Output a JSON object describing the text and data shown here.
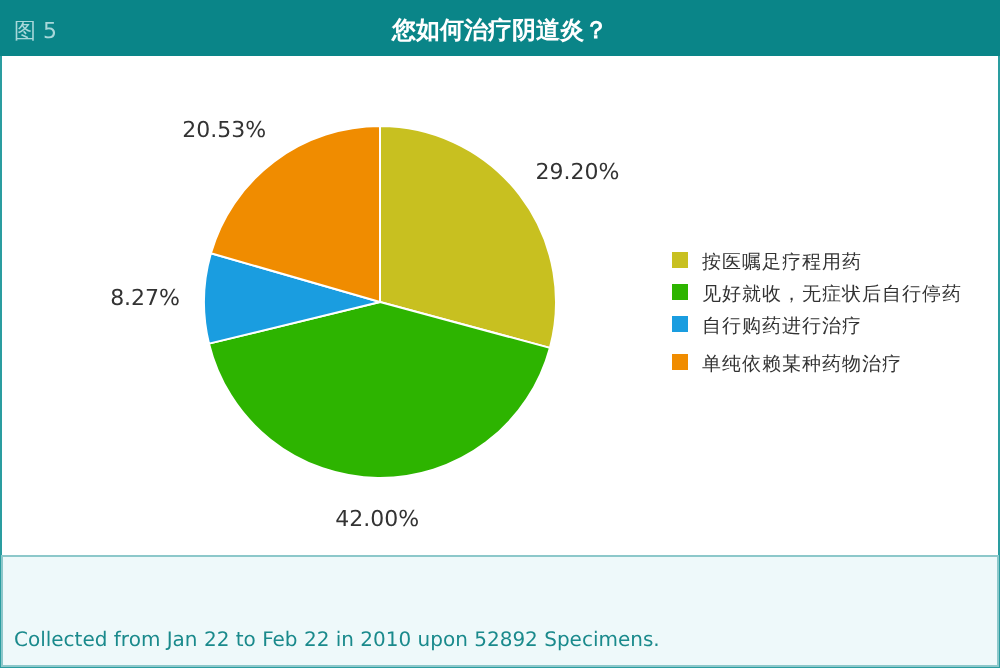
{
  "chart_data": {
    "type": "pie",
    "title": "您如何治疗阴道炎？",
    "categories": [
      "按医嘱足疗程用药",
      "见好就收，无症状后自行停药",
      "自行购药进行治疗",
      "单纯依赖某种药物治疗"
    ],
    "values": [
      29.2,
      42.0,
      8.27,
      20.53
    ],
    "colors": [
      "#c8c020",
      "#2db400",
      "#1a9de0",
      "#f08c00"
    ],
    "value_labels": [
      "29.20%",
      "42.00%",
      "8.27%",
      "20.53%"
    ],
    "legend": "right",
    "annotations": [
      "图 5",
      "Collected from Jan 22 to Feb 22 in 2010 upon 52892 Specimens."
    ]
  }
}
